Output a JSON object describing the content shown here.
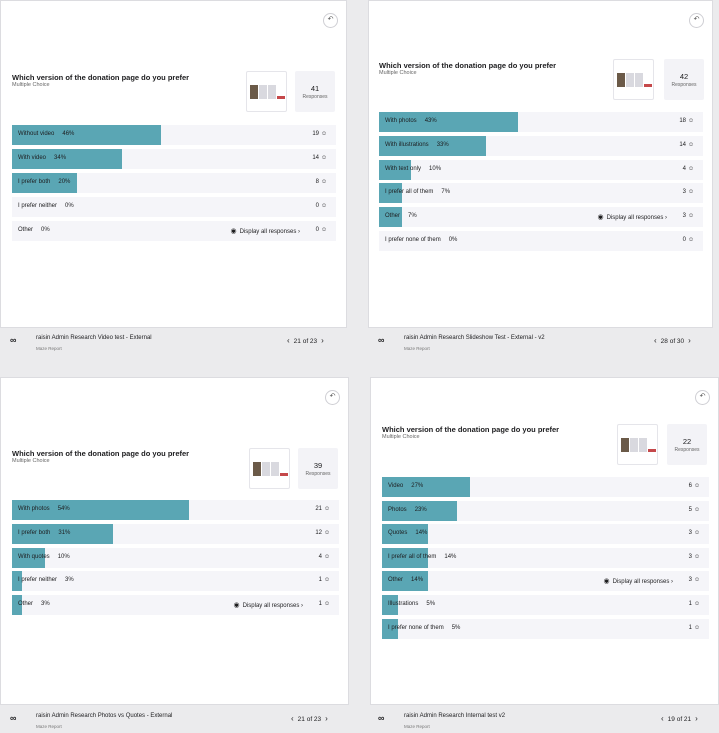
{
  "panels": [
    {
      "question": "Which version of the donation page do you prefer",
      "type": "Multiple Choice",
      "responses": "41",
      "responses_label": "Responses",
      "options": [
        {
          "label": "Without video",
          "pct": "46%",
          "count": "19",
          "fraction": 0.46
        },
        {
          "label": "With video",
          "pct": "34%",
          "count": "14",
          "fraction": 0.34
        },
        {
          "label": "I prefer both",
          "pct": "20%",
          "count": "8",
          "fraction": 0.2
        },
        {
          "label": "I prefer neither",
          "pct": "0%",
          "count": "0",
          "fraction": 0.0
        },
        {
          "label": "Other",
          "pct": "0%",
          "count": "0",
          "fraction": 0.0,
          "display": "Display all responses"
        }
      ],
      "report_title": "raisin Admin Research Video test - External",
      "report_sub": "Maze Report",
      "pager": "21 of 23"
    },
    {
      "question": "Which version of the donation page do you prefer",
      "type": "Multiple Choice",
      "responses": "42",
      "responses_label": "Responses",
      "options": [
        {
          "label": "With photos",
          "pct": "43%",
          "count": "18",
          "fraction": 0.43
        },
        {
          "label": "With illustrations",
          "pct": "33%",
          "count": "14",
          "fraction": 0.33
        },
        {
          "label": "With text only",
          "pct": "10%",
          "count": "4",
          "fraction": 0.1
        },
        {
          "label": "I prefer all of them",
          "pct": "7%",
          "count": "3",
          "fraction": 0.07
        },
        {
          "label": "Other",
          "pct": "7%",
          "count": "3",
          "fraction": 0.07,
          "display": "Display all responses"
        },
        {
          "label": "I prefer none of them",
          "pct": "0%",
          "count": "0",
          "fraction": 0.0
        }
      ],
      "report_title": "raisin Admin Research Slideshow Test - External - v2",
      "report_sub": "Maze Report",
      "pager": "28 of 30"
    },
    {
      "question": "Which version of the donation page do you prefer",
      "type": "Multiple Choice",
      "responses": "39",
      "responses_label": "Responses",
      "options": [
        {
          "label": "With photos",
          "pct": "54%",
          "count": "21",
          "fraction": 0.54
        },
        {
          "label": "I prefer both",
          "pct": "31%",
          "count": "12",
          "fraction": 0.31
        },
        {
          "label": "With quotes",
          "pct": "10%",
          "count": "4",
          "fraction": 0.1
        },
        {
          "label": "I prefer neither",
          "pct": "3%",
          "count": "1",
          "fraction": 0.03
        },
        {
          "label": "Other",
          "pct": "3%",
          "count": "1",
          "fraction": 0.03,
          "display": "Display all responses"
        }
      ],
      "report_title": "raisin Admin Research Photos vs Quotes - External",
      "report_sub": "Maze Report",
      "pager": "21 of 23"
    },
    {
      "question": "Which version of the donation page do you prefer",
      "type": "Multiple Choice",
      "responses": "22",
      "responses_label": "Responses",
      "options": [
        {
          "label": "Video",
          "pct": "27%",
          "count": "6",
          "fraction": 0.27
        },
        {
          "label": "Photos",
          "pct": "23%",
          "count": "5",
          "fraction": 0.23
        },
        {
          "label": "Quotes",
          "pct": "14%",
          "count": "3",
          "fraction": 0.14
        },
        {
          "label": "I prefer all of them",
          "pct": "14%",
          "count": "3",
          "fraction": 0.14
        },
        {
          "label": "Other",
          "pct": "14%",
          "count": "3",
          "fraction": 0.14,
          "display": "Display all responses"
        },
        {
          "label": "Illustrations",
          "pct": "5%",
          "count": "1",
          "fraction": 0.05
        },
        {
          "label": "I prefer none of them",
          "pct": "5%",
          "count": "1",
          "fraction": 0.05
        }
      ],
      "report_title": "raisin Admin Research Internal test v2",
      "report_sub": "Maze Report",
      "pager": "19 of 21"
    }
  ],
  "icons": {
    "undo": "undo-icon",
    "people": "people-icon",
    "eye": "eye-icon",
    "chevron": "chevron-icon",
    "logo": "maze-logo-icon"
  },
  "colors": {
    "bar": "#5aa6b4",
    "row": "#f5f5f9"
  }
}
